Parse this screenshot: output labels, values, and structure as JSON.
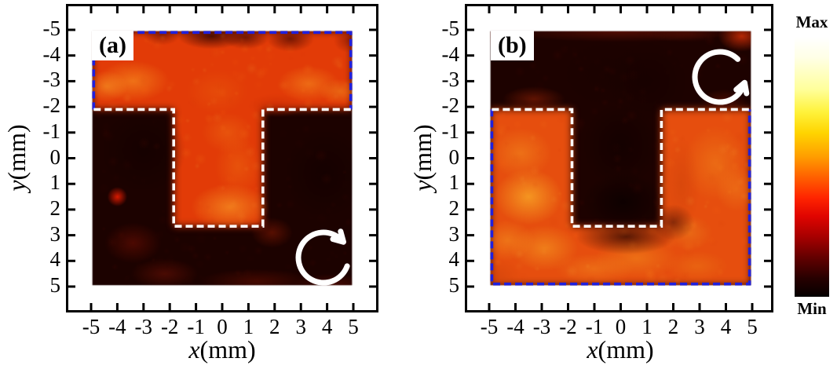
{
  "figure": {
    "panels": [
      {
        "id": "a",
        "label": "(a)",
        "xlabel_var": "x",
        "xlabel_unit": "(mm)",
        "ylabel_var": "y",
        "ylabel_unit": "(mm)",
        "x_tick_labels": [
          "-5",
          "-4",
          "-3",
          "-2",
          "-1",
          "0",
          "1",
          "2",
          "3",
          "4",
          "5"
        ],
        "y_tick_labels": [
          "5",
          "4",
          "3",
          "2",
          "1",
          "0",
          "-1",
          "-2",
          "-3",
          "-4",
          "-5"
        ],
        "rotation_icon": "circular-arrow-clockwise"
      },
      {
        "id": "b",
        "label": "(b)",
        "xlabel_var": "x",
        "xlabel_unit": "(mm)",
        "ylabel_var": "y",
        "ylabel_unit": "(mm)",
        "x_tick_labels": [
          "-5",
          "-4",
          "-3",
          "-2",
          "-1",
          "0",
          "1",
          "2",
          "3",
          "4",
          "5"
        ],
        "y_tick_labels": [
          "5",
          "4",
          "3",
          "2",
          "1",
          "0",
          "-1",
          "-2",
          "-3",
          "-4",
          "-5"
        ],
        "rotation_icon": "circular-arrow-counterclockwise"
      }
    ],
    "colorbar": {
      "max_label": "Max",
      "min_label": "Min",
      "gradient": [
        [
          "0%",
          "#ffffff"
        ],
        [
          "8%",
          "#ffffe6"
        ],
        [
          "20%",
          "#ffff9c"
        ],
        [
          "29%",
          "#fff23a"
        ],
        [
          "37%",
          "#ffd400"
        ],
        [
          "46%",
          "#ff9e00"
        ],
        [
          "54%",
          "#ff6000"
        ],
        [
          "62%",
          "#ff2400"
        ],
        [
          "69%",
          "#e00400"
        ],
        [
          "77%",
          "#a60000"
        ],
        [
          "85%",
          "#620000"
        ],
        [
          "93%",
          "#260000"
        ],
        [
          "100%",
          "#050000"
        ]
      ]
    },
    "styles": {
      "blue_dash_color": "#2020dd",
      "white_dash_color": "#ffffff",
      "frame_color": "#000000",
      "arrow_color": "#ffffff"
    }
  },
  "chart_data": [
    {
      "type": "heatmap",
      "panel": "(a)",
      "xlabel": "x(mm)",
      "ylabel": "y(mm)",
      "xlim": [
        -5,
        5
      ],
      "ylim": [
        -5,
        5
      ],
      "x_ticks": [
        -5,
        -4,
        -3,
        -2,
        -1,
        0,
        1,
        2,
        3,
        4,
        5
      ],
      "y_ticks": [
        -5,
        -4,
        -3,
        -2,
        -1,
        0,
        1,
        2,
        3,
        4,
        5
      ],
      "colormap": "hot",
      "value_max_label": "Max",
      "value_min_label": "Min",
      "description": "Measured intensity map: bright T-shaped region on dark background",
      "bright_region": "t-shape",
      "scan_area": {
        "x": [
          -4.95,
          4.95
        ],
        "y": [
          -4.95,
          4.95
        ]
      },
      "t_shape": {
        "bar_x": [
          -4.95,
          4.95
        ],
        "bar_y": [
          1.9,
          4.95
        ],
        "stem_x": [
          -1.85,
          1.55
        ],
        "stem_y": [
          -2.65,
          1.9
        ]
      },
      "base_colors": {
        "dark": "#1c0200",
        "bright": "#e23b07"
      },
      "outline_blue_dashed_mm": [
        [
          -4.9,
          1.9
        ],
        [
          -4.9,
          4.9
        ],
        [
          4.9,
          4.9
        ],
        [
          4.9,
          1.9
        ]
      ],
      "outline_white_dashed_mm": [
        [
          -4.9,
          1.9
        ],
        [
          -1.85,
          1.9
        ],
        [
          -1.85,
          -2.65
        ],
        [
          1.55,
          -2.65
        ],
        [
          1.55,
          1.9
        ],
        [
          4.9,
          1.9
        ]
      ],
      "rotation_marker": {
        "direction": "clockwise",
        "center_mm": {
          "x": 3.9,
          "y": -3.85
        }
      },
      "features": [
        [
          -3.4,
          3.0,
          1.4,
          0.8,
          "#f6891e",
          0.7
        ],
        [
          -4.4,
          2.8,
          0.8,
          0.6,
          "#f89e28",
          0.55
        ],
        [
          3.3,
          2.9,
          1.2,
          0.7,
          "#f68a1e",
          0.6
        ],
        [
          4.5,
          2.6,
          0.8,
          0.5,
          "#f09020",
          0.5
        ],
        [
          0.3,
          -1.9,
          1.5,
          0.9,
          "#f68f22",
          0.75
        ],
        [
          0.6,
          -0.3,
          0.9,
          1.2,
          "#ee6a10",
          0.5
        ],
        [
          0.2,
          1.0,
          1.0,
          0.8,
          "#f07214",
          0.45
        ],
        [
          -0.2,
          2.6,
          1.2,
          0.9,
          "#ea5a0c",
          0.5
        ],
        [
          -0.4,
          4.75,
          1.3,
          0.5,
          "#2d0300",
          0.8
        ],
        [
          0.9,
          4.7,
          0.9,
          0.45,
          "#3a0500",
          0.65
        ],
        [
          2.6,
          4.65,
          0.9,
          0.5,
          "#4a0800",
          0.7
        ],
        [
          -2.3,
          4.8,
          0.7,
          0.4,
          "#550b00",
          0.5
        ],
        [
          4.85,
          4.6,
          0.6,
          0.5,
          "#701000",
          0.55
        ],
        [
          2.1,
          2.05,
          1.1,
          0.45,
          "#c22604",
          0.45
        ],
        [
          -4.0,
          -1.5,
          0.38,
          0.38,
          "#e81c00",
          0.95
        ],
        [
          -3.4,
          -3.3,
          1.1,
          0.8,
          "#5c0c02",
          0.75
        ],
        [
          -2.2,
          -4.5,
          1.3,
          0.6,
          "#701205",
          0.55
        ],
        [
          1.3,
          -4.8,
          2.2,
          0.5,
          "#6e1002",
          0.5
        ],
        [
          4.2,
          -4.9,
          1.5,
          0.4,
          "#801403",
          0.4
        ],
        [
          1.9,
          -2.9,
          0.8,
          0.6,
          "#a02004",
          0.45
        ],
        [
          -3.0,
          0.3,
          1.6,
          1.6,
          "#100100",
          0.5
        ],
        [
          3.9,
          -0.6,
          1.5,
          1.7,
          "#100100",
          0.55
        ]
      ],
      "texture": {
        "bright_palette": [
          "#ff9820",
          "#d23705",
          "#ff6a10",
          "#f8b43c"
        ],
        "dark_palette": [
          "#3c0600",
          "#6a0e02",
          "#200200"
        ],
        "count": 240
      }
    },
    {
      "type": "heatmap",
      "panel": "(b)",
      "xlabel": "x(mm)",
      "ylabel": "y(mm)",
      "xlim": [
        -5,
        5
      ],
      "ylim": [
        -5,
        5
      ],
      "x_ticks": [
        -5,
        -4,
        -3,
        -2,
        -1,
        0,
        1,
        2,
        3,
        4,
        5
      ],
      "y_ticks": [
        -5,
        -4,
        -3,
        -2,
        -1,
        0,
        1,
        2,
        3,
        4,
        5
      ],
      "colormap": "hot",
      "value_max_label": "Max",
      "value_min_label": "Min",
      "description": "Measured intensity map: bright complement of the T-shape, T region dark",
      "bright_region": "complement-of-t-shape",
      "scan_area": {
        "x": [
          -4.95,
          4.95
        ],
        "y": [
          -4.95,
          4.95
        ]
      },
      "t_shape": {
        "bar_x": [
          -4.95,
          4.95
        ],
        "bar_y": [
          1.9,
          4.95
        ],
        "stem_x": [
          -1.85,
          1.55
        ],
        "stem_y": [
          -2.65,
          1.9
        ]
      },
      "base_colors": {
        "dark": "#1d0200",
        "bright": "#e64e0e"
      },
      "outline_blue_dashed_mm": [
        [
          -4.9,
          1.9
        ],
        [
          -4.9,
          -4.9
        ],
        [
          4.9,
          -4.9
        ],
        [
          4.9,
          1.9
        ]
      ],
      "outline_white_dashed_mm": [
        [
          -4.9,
          1.9
        ],
        [
          -1.85,
          1.9
        ],
        [
          -1.85,
          -2.65
        ],
        [
          1.55,
          -2.65
        ],
        [
          1.55,
          1.9
        ],
        [
          4.9,
          1.9
        ]
      ],
      "rotation_marker": {
        "direction": "counterclockwise",
        "center_mm": {
          "x": 3.8,
          "y": 3.2
        }
      },
      "features": [
        [
          -3.5,
          -1.5,
          1.3,
          1.1,
          "#f9a726",
          0.8
        ],
        [
          -3.8,
          0.2,
          1.2,
          1.0,
          "#f48c1e",
          0.55
        ],
        [
          -4.3,
          -3.2,
          1.0,
          0.8,
          "#f69a22",
          0.5
        ],
        [
          -2.9,
          -3.5,
          1.3,
          0.9,
          "#f8a424",
          0.55
        ],
        [
          0.6,
          -3.9,
          1.6,
          0.8,
          "#f28a1c",
          0.55
        ],
        [
          2.9,
          -4.2,
          1.2,
          0.6,
          "#ee7c16",
          0.45
        ],
        [
          3.6,
          -0.2,
          1.2,
          1.5,
          "#f0821a",
          0.55
        ],
        [
          4.4,
          -1.2,
          0.8,
          0.9,
          "#f48e20",
          0.4
        ],
        [
          -1.0,
          -4.3,
          1.5,
          0.6,
          "#f49020",
          0.45
        ],
        [
          2.6,
          -2.9,
          0.9,
          0.7,
          "#f09a24",
          0.35
        ],
        [
          2.3,
          -1.0,
          0.7,
          1.8,
          "#c8400a",
          0.4
        ],
        [
          -4.7,
          -4.6,
          0.9,
          0.7,
          "#c83e08",
          0.4
        ],
        [
          0,
          4.92,
          4.5,
          0.4,
          "#7a1404",
          0.55
        ],
        [
          -4.6,
          4.8,
          0.8,
          0.5,
          "#a81e04",
          0.6
        ],
        [
          4.6,
          4.75,
          0.9,
          0.6,
          "#d02e06",
          0.85
        ],
        [
          2.5,
          4.85,
          1.5,
          0.35,
          "#601004",
          0.45
        ],
        [
          -3.3,
          2.3,
          1.2,
          0.5,
          "#b22a06",
          0.45
        ],
        [
          3.9,
          2.2,
          0.9,
          0.5,
          "#8c1c04",
          0.4
        ],
        [
          0.1,
          -1.7,
          1.5,
          1.1,
          "#0a0000",
          0.8
        ],
        [
          0,
          0.5,
          1.4,
          1.6,
          "#100100",
          0.65
        ],
        [
          0.2,
          -3.05,
          1.9,
          0.7,
          "#1c0200",
          0.7
        ],
        [
          2.0,
          -2.5,
          0.8,
          0.7,
          "#2a0300",
          0.5
        ],
        [
          -0.5,
          3.3,
          1.6,
          1.2,
          "#190200",
          0.6
        ],
        [
          1.0,
          3.0,
          1.5,
          1.5,
          "#150100",
          0.6
        ]
      ],
      "texture": {
        "bright_palette": [
          "#ff9820",
          "#d23705",
          "#ff6a10",
          "#f8b43c"
        ],
        "dark_palette": [
          "#3c0600",
          "#6a0e02",
          "#200200"
        ],
        "count": 240
      }
    }
  ]
}
